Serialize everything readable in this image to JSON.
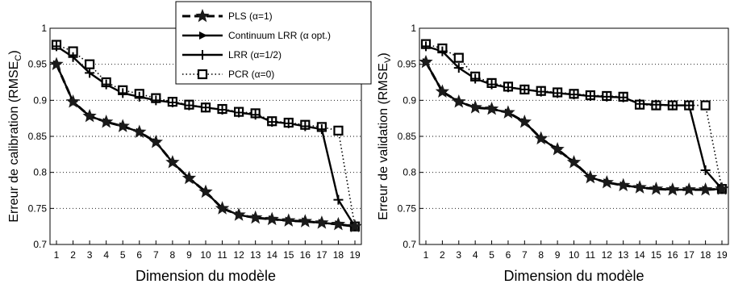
{
  "legend": {
    "items": [
      {
        "label": "PLS (α=1)",
        "style": "dashed",
        "marker": "star"
      },
      {
        "label": "Continuum LRR (α opt.)",
        "style": "solid",
        "marker": "triangle-right"
      },
      {
        "label": "LRR (α=1/2)",
        "style": "solid",
        "marker": "plus"
      },
      {
        "label": "PCR (α=0)",
        "style": "dotted",
        "marker": "square"
      }
    ]
  },
  "chart_data": [
    {
      "type": "line",
      "xlabel": "Dimension du modèle",
      "ylabel_main": "Erreur de calibration (RMSE",
      "ylabel_sub": "C",
      "ylabel_close": ")",
      "x": [
        1,
        2,
        3,
        4,
        5,
        6,
        7,
        8,
        9,
        10,
        11,
        12,
        13,
        14,
        15,
        16,
        17,
        18,
        19
      ],
      "xticks": [
        "1",
        "2",
        "3",
        "4",
        "5",
        "6",
        "7",
        "8",
        "9",
        "10",
        "11",
        "12",
        "13",
        "14",
        "15",
        "16",
        "17",
        "18",
        "19"
      ],
      "ylim": [
        0.7,
        1.0
      ],
      "yticks": [
        "0.7",
        "0.75",
        "0.8",
        "0.85",
        "0.9",
        "0.95",
        "1"
      ],
      "grid": true,
      "series": [
        {
          "name": "PLS (α=1)",
          "values": [
            0.95,
            0.898,
            0.878,
            0.87,
            0.864,
            0.856,
            0.842,
            0.814,
            0.792,
            0.773,
            0.75,
            0.741,
            0.737,
            0.735,
            0.733,
            0.732,
            0.73,
            0.728,
            0.725
          ]
        },
        {
          "name": "Continuum LRR (α opt.)",
          "values": [
            0.95,
            0.898,
            0.878,
            0.87,
            0.864,
            0.856,
            0.842,
            0.814,
            0.792,
            0.773,
            0.75,
            0.741,
            0.737,
            0.735,
            0.733,
            0.732,
            0.73,
            0.728,
            0.725
          ]
        },
        {
          "name": "LRR (α=1/2)",
          "values": [
            0.975,
            0.96,
            0.938,
            0.922,
            0.91,
            0.905,
            0.9,
            0.897,
            0.893,
            0.89,
            0.887,
            0.883,
            0.88,
            0.87,
            0.868,
            0.864,
            0.86,
            0.762,
            0.725
          ]
        },
        {
          "name": "PCR (α=0)",
          "values": [
            0.977,
            0.968,
            0.95,
            0.925,
            0.914,
            0.909,
            0.903,
            0.898,
            0.894,
            0.89,
            0.888,
            0.884,
            0.882,
            0.871,
            0.869,
            0.866,
            0.863,
            0.858,
            0.725
          ]
        }
      ]
    },
    {
      "type": "line",
      "xlabel": "Dimension du modèle",
      "ylabel_main": "Erreur de validation (RMSE",
      "ylabel_sub": "V",
      "ylabel_close": ")",
      "x": [
        1,
        2,
        3,
        4,
        5,
        6,
        7,
        8,
        9,
        10,
        11,
        12,
        13,
        14,
        15,
        16,
        17,
        18,
        19
      ],
      "xticks": [
        "1",
        "2",
        "3",
        "4",
        "5",
        "6",
        "7",
        "8",
        "9",
        "10",
        "11",
        "12",
        "13",
        "14",
        "15",
        "16",
        "17",
        "18",
        "19"
      ],
      "ylim": [
        0.7,
        1.0
      ],
      "yticks": [
        "0.7",
        "0.75",
        "0.8",
        "0.85",
        "0.9",
        "0.95",
        "1"
      ],
      "grid": true,
      "series": [
        {
          "name": "PLS (α=1)",
          "values": [
            0.953,
            0.912,
            0.898,
            0.89,
            0.888,
            0.883,
            0.87,
            0.847,
            0.832,
            0.814,
            0.793,
            0.786,
            0.782,
            0.779,
            0.777,
            0.776,
            0.776,
            0.776,
            0.777
          ]
        },
        {
          "name": "Continuum LRR (α opt.)",
          "values": [
            0.953,
            0.912,
            0.898,
            0.89,
            0.888,
            0.883,
            0.87,
            0.847,
            0.832,
            0.814,
            0.793,
            0.786,
            0.782,
            0.779,
            0.777,
            0.776,
            0.776,
            0.776,
            0.777
          ]
        },
        {
          "name": "LRR (α=1/2)",
          "values": [
            0.975,
            0.968,
            0.945,
            0.93,
            0.922,
            0.918,
            0.915,
            0.912,
            0.91,
            0.908,
            0.906,
            0.905,
            0.904,
            0.895,
            0.894,
            0.893,
            0.893,
            0.803,
            0.777
          ]
        },
        {
          "name": "PCR (α=0)",
          "values": [
            0.978,
            0.972,
            0.959,
            0.933,
            0.924,
            0.919,
            0.915,
            0.913,
            0.911,
            0.909,
            0.907,
            0.906,
            0.905,
            0.894,
            0.893,
            0.893,
            0.893,
            0.893,
            0.777
          ]
        }
      ]
    }
  ]
}
